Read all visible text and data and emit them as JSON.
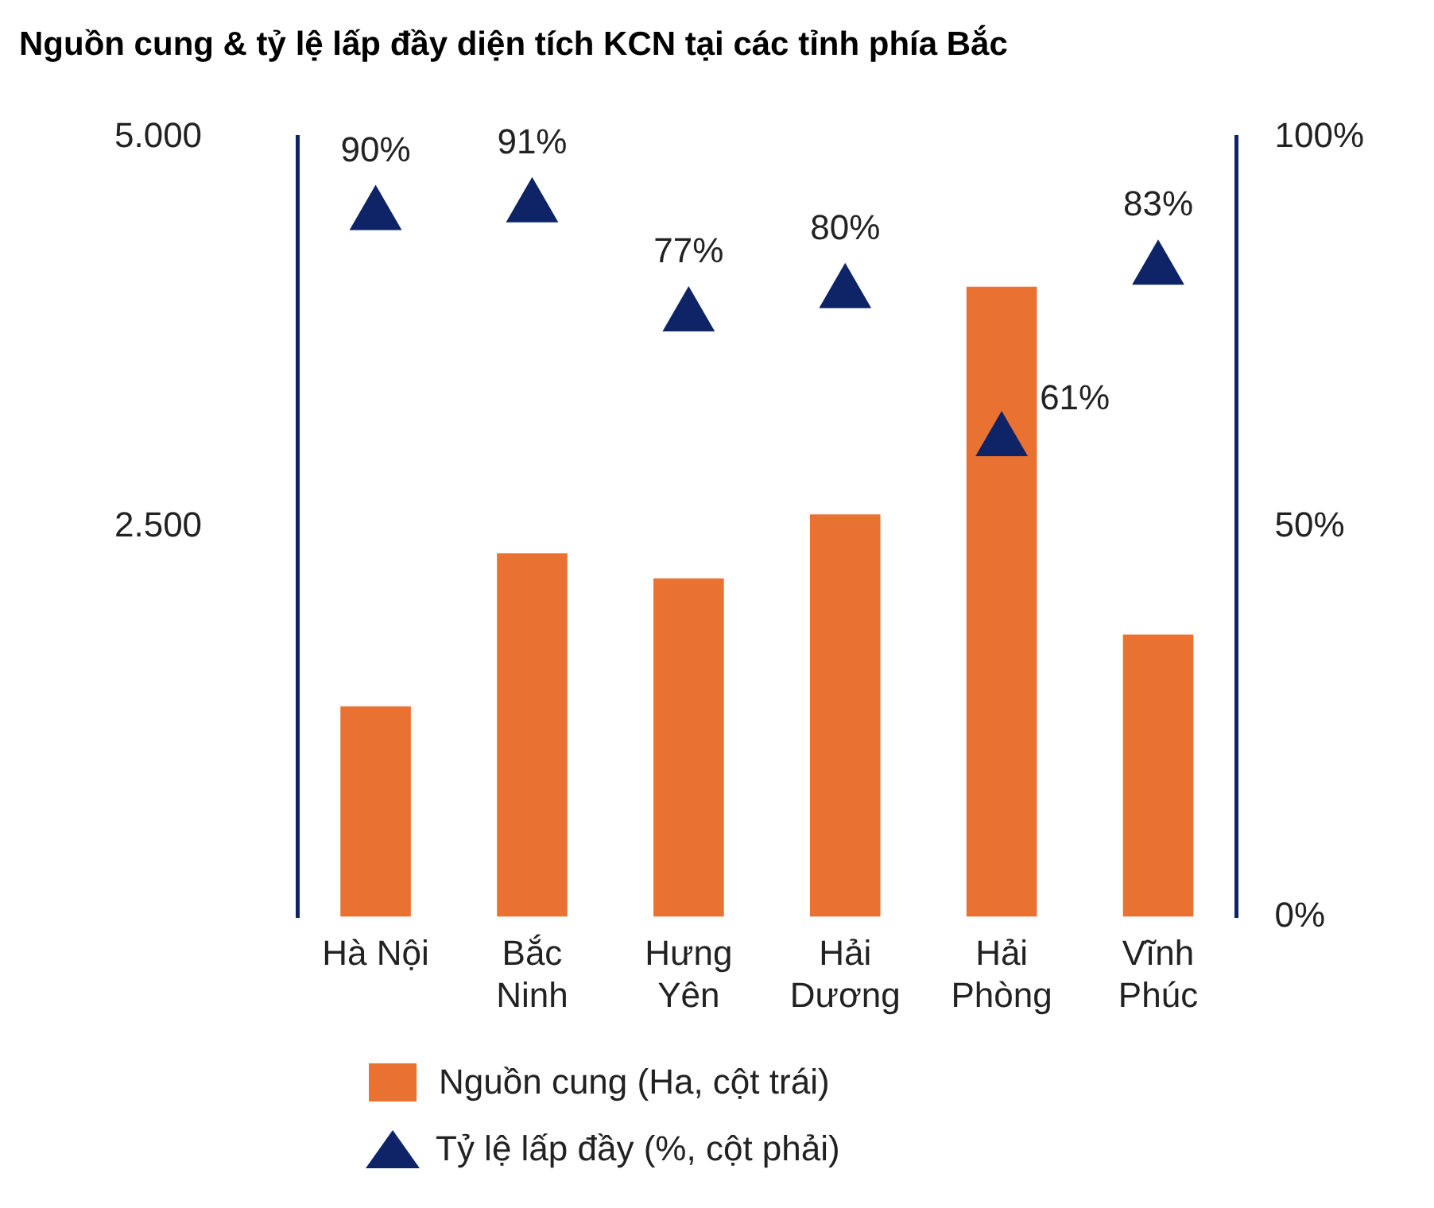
{
  "chart_data": {
    "type": "bar",
    "title": "Nguồn cung & tỷ lệ lấp đầy diện tích KCN tại các tỉnh phía Bắc",
    "categories": [
      "Hà Nội",
      "Bắc Ninh",
      "Hưng Yên",
      "Hải Dương",
      "Hải Phòng",
      "Vĩnh Phúc"
    ],
    "series": [
      {
        "name": "Nguồn cung (Ha, cột trái)",
        "color": "#e97132",
        "values": [
          1350,
          2330,
          2170,
          2580,
          4040,
          1810
        ]
      },
      {
        "name": "Tỷ lệ lấp đầy (%, cột phải)",
        "type": "scatter",
        "axis": "y2",
        "color": "#0e2467",
        "marker": "triangle",
        "values": [
          90,
          91,
          77,
          80,
          61,
          83
        ],
        "value_labels": [
          "90%",
          "91%",
          "77%",
          "80%",
          "61%",
          "83%"
        ]
      }
    ],
    "ylim": [
      0,
      5000
    ],
    "yticks": [
      {
        "value": 2500,
        "label": "2.500"
      },
      {
        "value": 5000,
        "label": "5.000"
      }
    ],
    "y2lim": [
      0,
      100
    ],
    "y2ticks": [
      {
        "value": 0,
        "label": "0%"
      },
      {
        "value": 50,
        "label": "50%"
      },
      {
        "value": 100,
        "label": "100%"
      }
    ],
    "grid": false,
    "legend": "bottom"
  }
}
